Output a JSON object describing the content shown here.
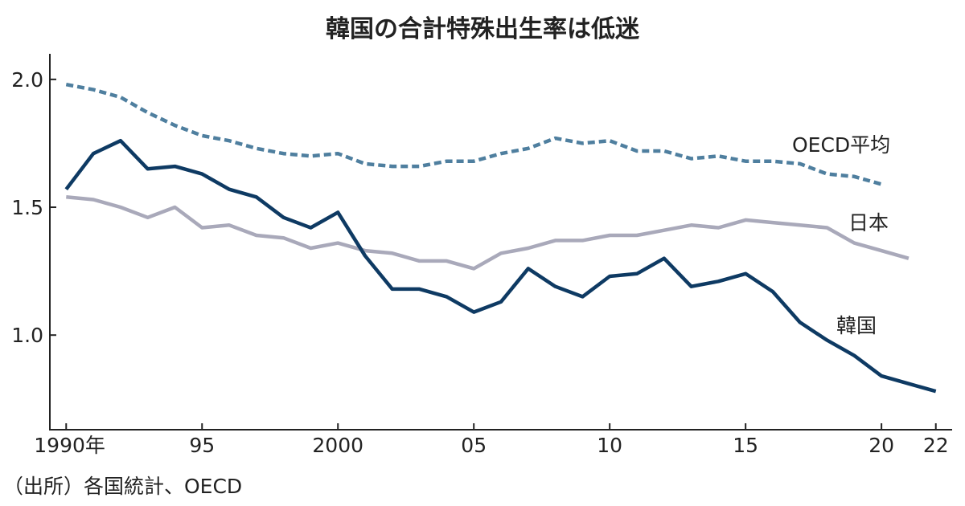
{
  "chart_data": {
    "type": "line",
    "title": "韓国の合計特殊出生率は低迷",
    "source": "（出所）各国統計、OECD",
    "xlabel": "",
    "ylabel": "",
    "xlim": [
      1989.4,
      2022.6
    ],
    "ylim": [
      0.63,
      2.1
    ],
    "grid": false,
    "legend": "inline labels at right end of each line",
    "x_ticks": [
      {
        "value": 1990,
        "label": "1990年"
      },
      {
        "value": 1995,
        "label": "95"
      },
      {
        "value": 2000,
        "label": "2000"
      },
      {
        "value": 2005,
        "label": "05"
      },
      {
        "value": 2010,
        "label": "10"
      },
      {
        "value": 2015,
        "label": "15"
      },
      {
        "value": 2020,
        "label": "20"
      },
      {
        "value": 2022,
        "label": "22"
      }
    ],
    "y_ticks": [
      {
        "value": 2.0,
        "label": "2.0"
      },
      {
        "value": 1.5,
        "label": "1.5"
      },
      {
        "value": 1.0,
        "label": "1.0"
      }
    ],
    "series": [
      {
        "name": "OECD平均",
        "color": "#4f7f9f",
        "style": "dashed",
        "x": [
          1990,
          1991,
          1992,
          1993,
          1994,
          1995,
          1996,
          1997,
          1998,
          1999,
          2000,
          2001,
          2002,
          2003,
          2004,
          2005,
          2006,
          2007,
          2008,
          2009,
          2010,
          2011,
          2012,
          2013,
          2014,
          2015,
          2016,
          2017,
          2018,
          2019,
          2020
        ],
        "values": [
          1.98,
          1.96,
          1.93,
          1.87,
          1.82,
          1.78,
          1.76,
          1.73,
          1.71,
          1.7,
          1.71,
          1.67,
          1.66,
          1.66,
          1.68,
          1.68,
          1.71,
          1.73,
          1.77,
          1.75,
          1.76,
          1.72,
          1.72,
          1.69,
          1.7,
          1.68,
          1.68,
          1.67,
          1.63,
          1.62,
          1.59
        ]
      },
      {
        "name": "日本",
        "color": "#a9a9ba",
        "style": "solid",
        "x": [
          1990,
          1991,
          1992,
          1993,
          1994,
          1995,
          1996,
          1997,
          1998,
          1999,
          2000,
          2001,
          2002,
          2003,
          2004,
          2005,
          2006,
          2007,
          2008,
          2009,
          2010,
          2011,
          2012,
          2013,
          2014,
          2015,
          2016,
          2017,
          2018,
          2019,
          2020,
          2021
        ],
        "values": [
          1.54,
          1.53,
          1.5,
          1.46,
          1.5,
          1.42,
          1.43,
          1.39,
          1.38,
          1.34,
          1.36,
          1.33,
          1.32,
          1.29,
          1.29,
          1.26,
          1.32,
          1.34,
          1.37,
          1.37,
          1.39,
          1.39,
          1.41,
          1.43,
          1.42,
          1.45,
          1.44,
          1.43,
          1.42,
          1.36,
          1.33,
          1.3
        ]
      },
      {
        "name": "韓国",
        "color": "#0e3a63",
        "style": "solid",
        "x": [
          1990,
          1991,
          1992,
          1993,
          1994,
          1995,
          1996,
          1997,
          1998,
          1999,
          2000,
          2001,
          2002,
          2003,
          2004,
          2005,
          2006,
          2007,
          2008,
          2009,
          2010,
          2011,
          2012,
          2013,
          2014,
          2015,
          2016,
          2017,
          2018,
          2019,
          2020,
          2021,
          2022
        ],
        "values": [
          1.57,
          1.71,
          1.76,
          1.65,
          1.66,
          1.63,
          1.57,
          1.54,
          1.46,
          1.42,
          1.48,
          1.31,
          1.18,
          1.18,
          1.15,
          1.09,
          1.13,
          1.26,
          1.19,
          1.15,
          1.23,
          1.24,
          1.3,
          1.19,
          1.21,
          1.24,
          1.17,
          1.05,
          0.98,
          0.92,
          0.84,
          0.81,
          0.78
        ]
      }
    ]
  }
}
